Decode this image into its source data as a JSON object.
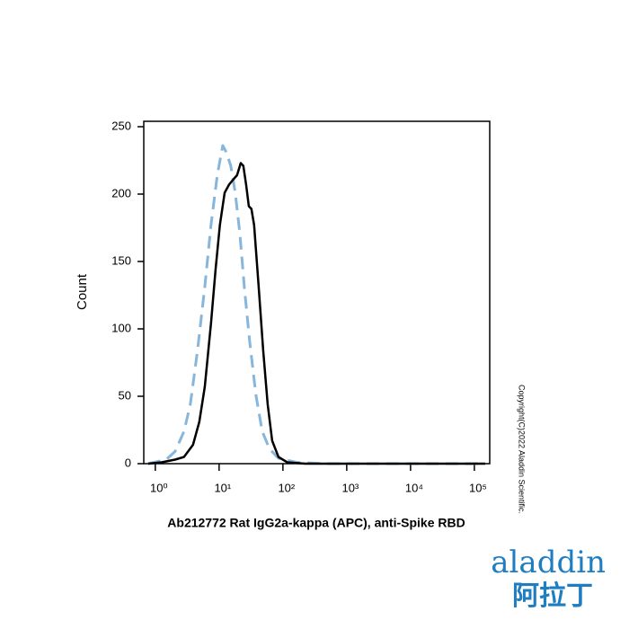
{
  "chart_data": {
    "type": "line",
    "xlabel": "Ab212772 Rat IgG2a-kappa (APC), anti-Spike RBD",
    "ylabel": "Count",
    "xscale": "log",
    "xlim": [
      0.66,
      174000
    ],
    "xticks": [
      {
        "value": 1,
        "label": "10⁰"
      },
      {
        "value": 10,
        "label": "10¹"
      },
      {
        "value": 100,
        "label": "10²"
      },
      {
        "value": 1000,
        "label": "10³"
      },
      {
        "value": 10000,
        "label": "10⁴"
      },
      {
        "value": 100000,
        "label": "10⁵"
      }
    ],
    "ylim": [
      0,
      250
    ],
    "yticks": [
      0,
      50,
      100,
      150,
      200,
      250
    ],
    "series": [
      {
        "color": "#000000",
        "dash": false,
        "x": [
          0.77,
          1.26,
          2.04,
          2.82,
          3.9,
          4.9,
          5.96,
          7.47,
          8.8,
          10.3,
          12.2,
          14.3,
          16.8,
          19.1,
          21.8,
          24.0,
          26.5,
          29.2,
          32.1,
          35.4,
          41.7,
          49.0,
          57.7,
          67.8,
          85.1,
          117,
          224,
          148000
        ],
        "values": [
          0,
          1,
          3,
          5,
          14,
          31,
          57,
          104,
          144,
          177,
          201,
          207,
          211,
          214,
          223,
          221,
          207,
          191,
          189,
          177,
          131,
          84,
          44,
          17,
          5,
          1,
          0,
          0
        ]
      },
      {
        "color": "#86b6dc",
        "dash": true,
        "x": [
          0.77,
          1.48,
          2.04,
          2.82,
          3.54,
          4.59,
          5.96,
          7.47,
          9.37,
          11.4,
          13.0,
          15.2,
          17.9,
          21.1,
          24.8,
          30.1,
          37.8,
          47.4,
          61.5,
          85.1,
          163,
          430,
          148000
        ],
        "values": [
          0,
          3,
          9,
          24,
          44,
          84,
          131,
          177,
          214,
          236,
          231,
          221,
          201,
          171,
          131,
          91,
          51,
          24,
          11,
          4,
          1,
          0,
          0
        ]
      }
    ]
  },
  "copyright": "Copyright(C)2022 Aladdin Scientific.",
  "logo": {
    "name": "aladdin",
    "chinese": "阿拉丁"
  }
}
